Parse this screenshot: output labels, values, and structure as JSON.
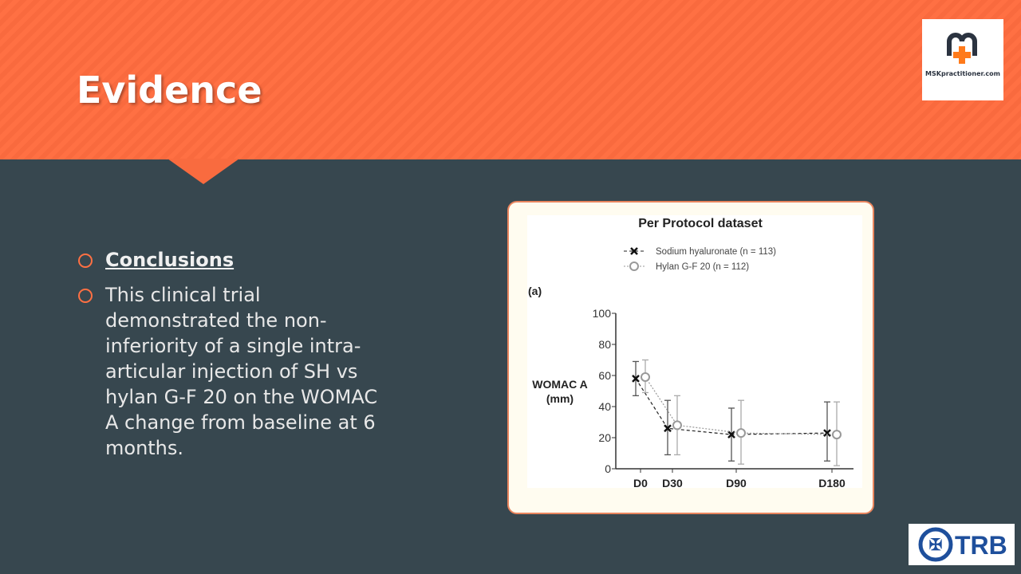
{
  "slide": {
    "title": "Evidence",
    "bullets": [
      {
        "text": "Conclusions",
        "underlined": true
      },
      {
        "text": "This clinical trial demonstrated the non-inferiority of a single intra-articular injection of SH vs hylan G-F 20 on the WOMAC A change from baseline at 6 months."
      }
    ],
    "logos": {
      "msk": "MSKpractitioner.com",
      "trb": "TRB"
    },
    "colors": {
      "accent": "#ff7043",
      "background": "#37474f"
    }
  },
  "chart_data": {
    "type": "line",
    "title": "Per Protocol dataset",
    "panel_label": "(a)",
    "ylabel": "WOMAC A",
    "ylabel_unit": "(mm)",
    "categories": [
      "D0",
      "D30",
      "D90",
      "D180"
    ],
    "x_days": [
      0,
      30,
      90,
      180
    ],
    "ylim": [
      0,
      100
    ],
    "yticks": [
      0,
      20,
      40,
      60,
      80,
      100
    ],
    "grid": false,
    "legend_placement": "top",
    "series": [
      {
        "name": "Sodium hyaluronate (n = 113)",
        "marker": "x",
        "line": "dashed",
        "color": "#222222",
        "values": [
          58,
          26,
          22,
          23
        ],
        "lower": [
          47,
          9,
          5,
          5
        ],
        "upper": [
          69,
          44,
          39,
          43
        ]
      },
      {
        "name": "Hylan G-F 20 (n = 112)",
        "marker": "open-circle",
        "line": "dotted",
        "color": "#999999",
        "values": [
          59,
          28,
          23,
          22
        ],
        "lower": [
          49,
          9,
          3,
          2
        ],
        "upper": [
          70,
          47,
          44,
          43
        ]
      }
    ]
  }
}
